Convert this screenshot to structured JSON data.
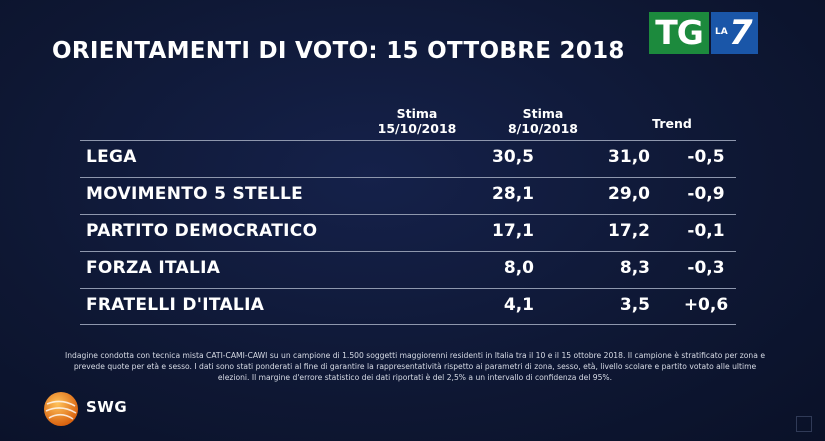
{
  "title": "ORIENTAMENTI DI VOTO: 15 OTTOBRE 2018",
  "logo": {
    "tg": "TG",
    "la": "LA",
    "seven": "7",
    "tg_color": "#1c8a3d",
    "la7_color": "#1a56a8"
  },
  "headers": {
    "col1_line1": "Stima",
    "col1_line2": "15/10/2018",
    "col2_line1": "Stima",
    "col2_line2": "8/10/2018",
    "col3": "Trend"
  },
  "rows": [
    {
      "party": "LEGA",
      "stima_15": "30,5",
      "stima_8": "31,0",
      "trend": "-0,5"
    },
    {
      "party": "MOVIMENTO 5 STELLE",
      "stima_15": "28,1",
      "stima_8": "29,0",
      "trend": "-0,9"
    },
    {
      "party": "PARTITO DEMOCRATICO",
      "stima_15": "17,1",
      "stima_8": "17,2",
      "trend": "-0,1"
    },
    {
      "party": "FORZA ITALIA",
      "stima_15": "8,0",
      "stima_8": "8,3",
      "trend": "-0,3"
    },
    {
      "party": "FRATELLI D'ITALIA",
      "stima_15": "4,1",
      "stima_8": "3,5",
      "trend": "+0,6"
    }
  ],
  "note": "Indagine condotta con tecnica mista CATI-CAMI-CAWI su un campione di 1.500 soggetti maggiorenni residenti in Italia tra il 10 e il 15 ottobre 2018. Il campione è stratificato per zona e prevede quote per età e sesso. I dati sono stati ponderati al fine di garantire la rappresentatività rispetto ai parametri di zona, sesso, età, livello scolare e partito votato alle ultime elezioni. Il margine d'errore statistico dei dati riportati è del 2,5% a un intervallo di confidenza del 95%.",
  "source_logo": {
    "text": "SWG",
    "color": "#f08a24"
  },
  "chart_data": {
    "type": "table",
    "title": "ORIENTAMENTI DI VOTO: 15 OTTOBRE 2018",
    "columns": [
      "Stima 15/10/2018",
      "Stima 8/10/2018",
      "Trend"
    ],
    "categories": [
      "LEGA",
      "MOVIMENTO 5 STELLE",
      "PARTITO DEMOCRATICO",
      "FORZA ITALIA",
      "FRATELLI D'ITALIA"
    ],
    "series": [
      {
        "name": "Stima 15/10/2018",
        "values": [
          30.5,
          28.1,
          17.1,
          8.0,
          4.1
        ]
      },
      {
        "name": "Stima 8/10/2018",
        "values": [
          31.0,
          29.0,
          17.2,
          8.3,
          3.5
        ]
      },
      {
        "name": "Trend",
        "values": [
          -0.5,
          -0.9,
          -0.1,
          -0.3,
          0.6
        ]
      }
    ]
  }
}
